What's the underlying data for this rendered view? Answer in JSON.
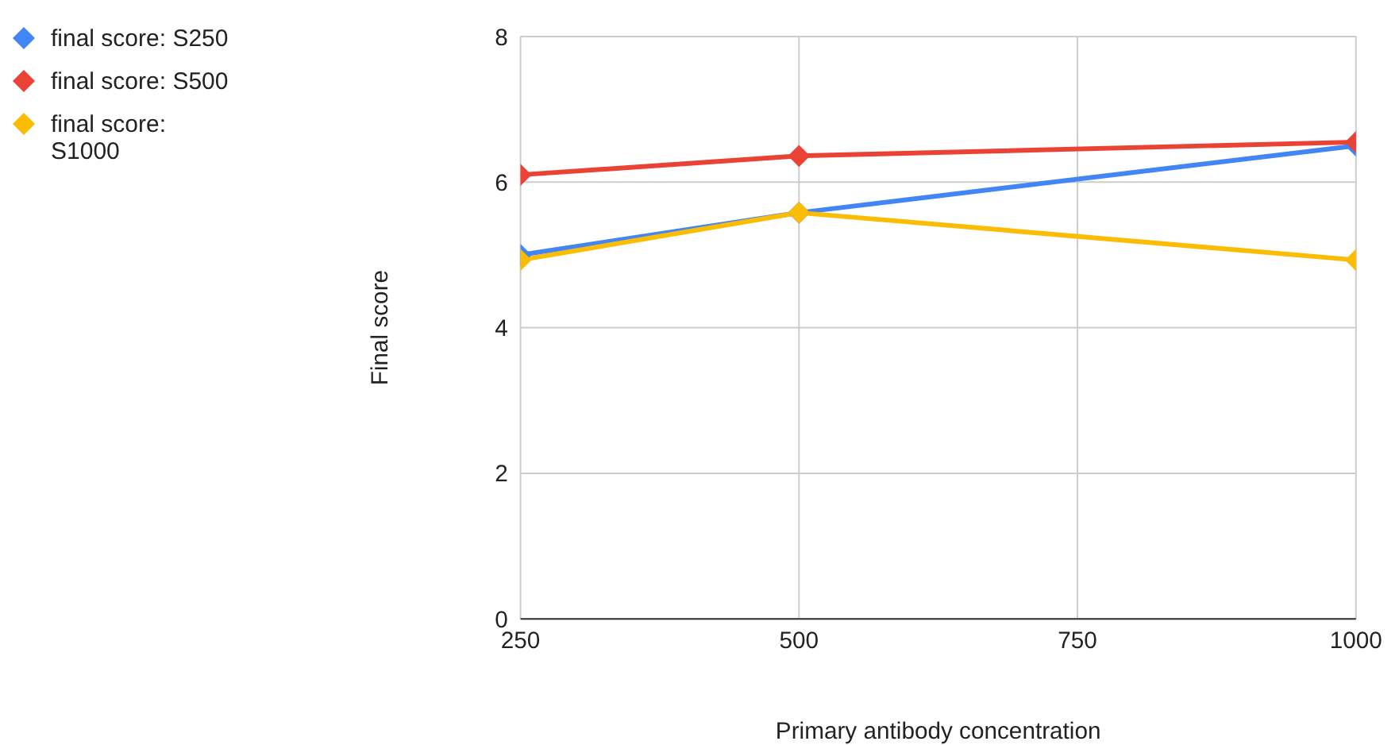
{
  "chart_data": {
    "type": "line",
    "xlabel": "Primary antibody concentration",
    "ylabel": "Final score",
    "x": [
      250,
      500,
      1000
    ],
    "series": [
      {
        "name": "final score: S250",
        "color": "#4285f4",
        "values": [
          5.0,
          5.58,
          6.5
        ]
      },
      {
        "name": "final score: S500",
        "color": "#ea4335",
        "values": [
          6.1,
          6.36,
          6.55
        ]
      },
      {
        "name": "final score: S1000",
        "color": "#fbbc04",
        "values": [
          4.93,
          5.58,
          4.93
        ]
      }
    ],
    "xlim": [
      250,
      1000
    ],
    "xticks": [
      250,
      500,
      750,
      1000
    ],
    "ylim": [
      0,
      8
    ],
    "yticks": [
      0,
      2,
      4,
      6,
      8
    ],
    "grid": true,
    "legend": "left",
    "marker": "diamond",
    "line_style": "solid"
  }
}
